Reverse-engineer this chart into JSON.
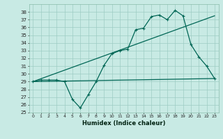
{
  "xlabel": "Humidex (Indice chaleur)",
  "xlim": [
    -0.5,
    23.5
  ],
  "ylim": [
    25,
    39
  ],
  "yticks": [
    25,
    26,
    27,
    28,
    29,
    30,
    31,
    32,
    33,
    34,
    35,
    36,
    37,
    38
  ],
  "xticks": [
    0,
    1,
    2,
    3,
    4,
    5,
    6,
    7,
    8,
    9,
    10,
    11,
    12,
    13,
    14,
    15,
    16,
    17,
    18,
    19,
    20,
    21,
    22,
    23
  ],
  "bg_color": "#c8eae4",
  "grid_color": "#9dccc4",
  "line_color": "#006655",
  "curve1_x": [
    0,
    1,
    2,
    3,
    4,
    5,
    6,
    7,
    8,
    9,
    10,
    11,
    12,
    13,
    14,
    15,
    16,
    17,
    18,
    19,
    20,
    21,
    22,
    23
  ],
  "curve1_y": [
    29.0,
    29.2,
    29.2,
    29.2,
    29.0,
    26.7,
    25.6,
    27.3,
    29.0,
    31.1,
    32.6,
    33.0,
    33.2,
    35.7,
    35.9,
    37.4,
    37.6,
    37.0,
    38.2,
    37.5,
    33.8,
    32.2,
    31.0,
    29.4
  ],
  "curve2_x": [
    0,
    23
  ],
  "curve2_y": [
    29.0,
    37.5
  ],
  "curve3_x": [
    0,
    23
  ],
  "curve3_y": [
    29.0,
    29.4
  ]
}
